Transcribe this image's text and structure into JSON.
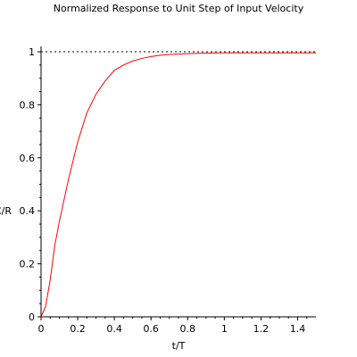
{
  "chart_data": {
    "type": "line",
    "title": "Normalized Response to Unit Step of Input Velocity",
    "xlabel": "t/T",
    "ylabel": "C/R",
    "xlim": [
      0,
      1.5
    ],
    "ylim": [
      0,
      1
    ],
    "x_ticks": [
      0,
      0.2,
      0.4,
      0.6,
      0.8,
      1,
      1.2,
      1.4
    ],
    "x_tick_labels": [
      "0",
      "0.2",
      "0.4",
      "0.6",
      "0.8",
      "1",
      "1.2",
      "1.4"
    ],
    "y_ticks": [
      0,
      0.2,
      0.4,
      0.6,
      0.8,
      1
    ],
    "y_tick_labels": [
      "0",
      "0.2",
      "0.4",
      "0.6",
      "0.8",
      "1"
    ],
    "grid": false,
    "reference_line": {
      "y": 1,
      "style": "dotted",
      "color": "#000000"
    },
    "series": [
      {
        "color": "#ff0000",
        "x": [
          0,
          0.025,
          0.05,
          0.075,
          0.1,
          0.15,
          0.2,
          0.25,
          0.3,
          0.35,
          0.4,
          0.45,
          0.5,
          0.55,
          0.6,
          0.65,
          0.7,
          0.8,
          0.9,
          1.0,
          1.1,
          1.2,
          1.3,
          1.4,
          1.5
        ],
        "y": [
          0,
          0.04,
          0.14,
          0.27,
          0.36,
          0.52,
          0.66,
          0.77,
          0.84,
          0.89,
          0.93,
          0.95,
          0.965,
          0.975,
          0.982,
          0.987,
          0.99,
          0.993,
          0.995,
          0.996,
          0.996,
          0.996,
          0.996,
          0.996,
          0.996
        ]
      }
    ]
  }
}
